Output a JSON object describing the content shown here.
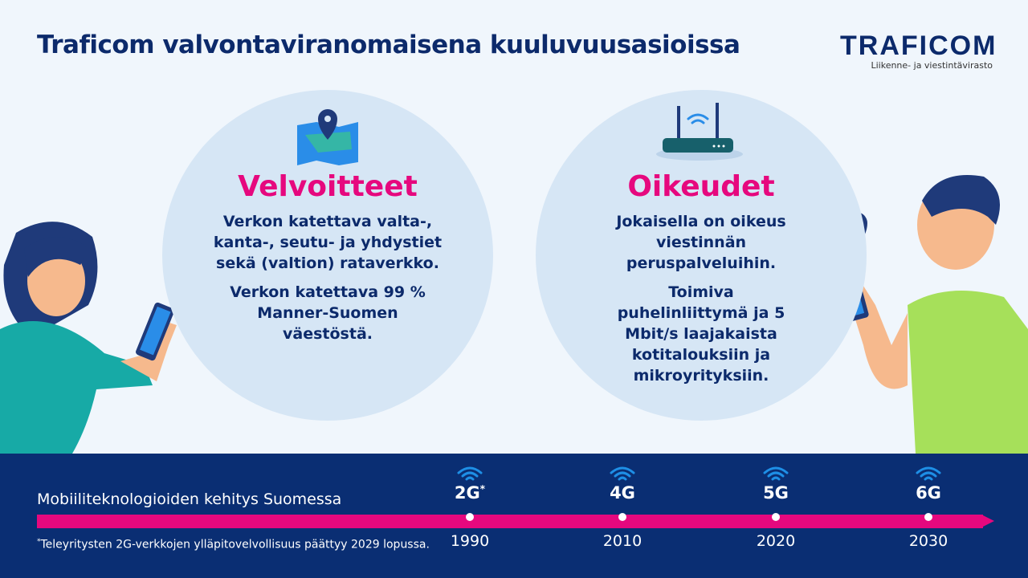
{
  "title": "Traficom valvontaviranomaisena kuuluvuusasioissa",
  "logo": {
    "wordmark": "TRAFICOM",
    "subtitle": "Liikenne- ja viestintävirasto"
  },
  "left_card": {
    "icon": "map-pin-icon",
    "heading": "Velvoitteet",
    "paragraphs": [
      "Verkon katettava valta-, kanta-, seutu- ja yhdystiet sekä (valtion) rataverkko.",
      "Verkon katettava 99 % Manner-Suomen väestöstä."
    ]
  },
  "right_card": {
    "icon": "router-icon",
    "heading": "Oikeudet",
    "paragraphs": [
      "Jokaisella on oikeus viestinnän peruspalveluihin.",
      "Toimiva puhelinliittymä ja 5 Mbit/s laajakaista kotitalouksiin ja mikroyrityksiin."
    ]
  },
  "timeline": {
    "label": "Mobiiliteknologioiden kehitys Suomessa",
    "footnote_marker": "*",
    "footnote": "Teleyritysten 2G-verkkojen ylläpitovelvollisuus päättyy 2029 lopussa.",
    "items": [
      {
        "gen": "2G",
        "marker": "*",
        "year": "1990"
      },
      {
        "gen": "4G",
        "marker": "",
        "year": "2010"
      },
      {
        "gen": "5G",
        "marker": "",
        "year": "2020"
      },
      {
        "gen": "6G",
        "marker": "",
        "year": "2030"
      }
    ]
  },
  "colors": {
    "navy": "#0c2a6b",
    "pink": "#e6087e",
    "band": "#0a2e73",
    "circle": "#d6e6f5",
    "wifi": "#1e8fe6"
  }
}
